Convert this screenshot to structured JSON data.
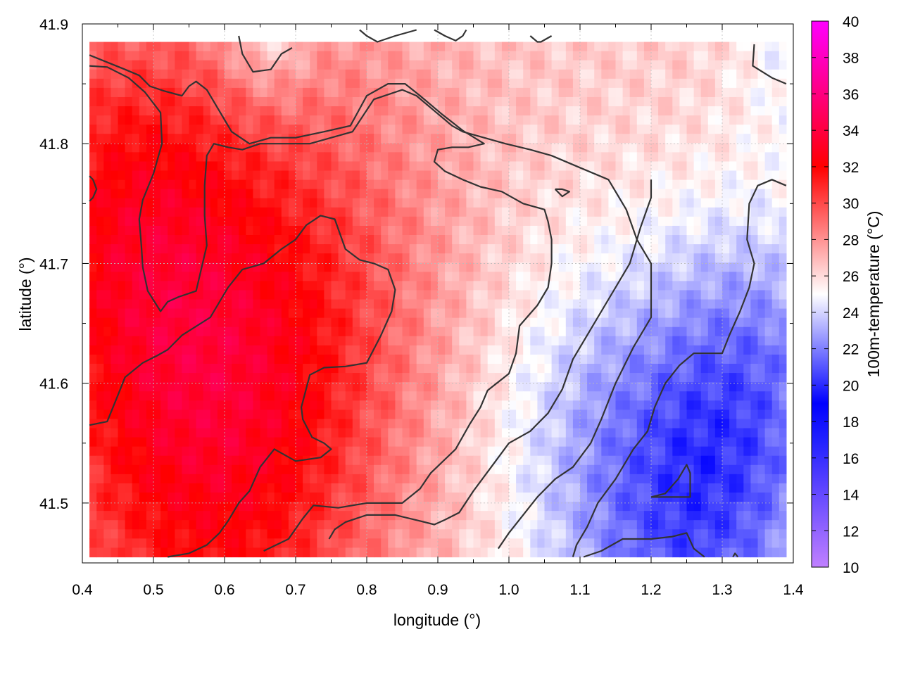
{
  "chart_data": {
    "type": "heatmap",
    "title": "",
    "xlabel": "longitude (°)",
    "ylabel": "latitude (°)",
    "colorbar_label": "100m-temperature (°C)",
    "xlim": [
      0.4,
      1.4
    ],
    "ylim": [
      41.45,
      41.9
    ],
    "x_ticks": [
      0.4,
      0.5,
      0.6,
      0.7,
      0.8,
      0.9,
      1.0,
      1.1,
      1.2,
      1.3,
      1.4
    ],
    "x_tick_labels": [
      "0.4",
      "0.5",
      "0.6",
      "0.7",
      "0.8",
      "0.9",
      "1.0",
      "1.1",
      "1.2",
      "1.3",
      "1.4"
    ],
    "y_ticks": [
      41.5,
      41.6,
      41.7,
      41.8,
      41.9
    ],
    "y_tick_labels": [
      "41.5",
      "41.6",
      "41.7",
      "41.8",
      "41.9"
    ],
    "color_range": [
      10,
      40
    ],
    "colorbar_ticks": [
      10,
      12,
      14,
      16,
      18,
      20,
      22,
      24,
      26,
      28,
      30,
      32,
      34,
      36,
      38,
      40
    ],
    "colorbar_tick_labels": [
      "10",
      "12",
      "14",
      "16",
      "18",
      "20",
      "22",
      "24",
      "26",
      "28",
      "30",
      "32",
      "34",
      "36",
      "38",
      "40"
    ],
    "colormap": [
      {
        "value": 10,
        "color": "#c080ff"
      },
      {
        "value": 17,
        "color": "#2020ff"
      },
      {
        "value": 19,
        "color": "#0000ff"
      },
      {
        "value": 25,
        "color": "#ffffff"
      },
      {
        "value": 32,
        "color": "#ff0000"
      },
      {
        "value": 34,
        "color": "#ff0040"
      },
      {
        "value": 40,
        "color": "#ff00ff"
      }
    ],
    "grid": true,
    "field_model": {
      "base": 26.5,
      "hot_spots": [
        {
          "lon": 0.58,
          "lat": 41.56,
          "amp": 6.0,
          "sigma": 0.17
        },
        {
          "lon": 0.44,
          "lat": 41.76,
          "amp": 3.5,
          "sigma": 0.12
        },
        {
          "lon": 0.73,
          "lat": 41.72,
          "amp": 1.8,
          "sigma": 0.15
        }
      ],
      "cold_spots": [
        {
          "lon": 1.25,
          "lat": 41.5,
          "amp": 5.5,
          "sigma": 0.13
        },
        {
          "lon": 1.37,
          "lat": 41.62,
          "amp": 2.5,
          "sigma": 0.1
        },
        {
          "lon": 0.66,
          "lat": 41.9,
          "amp": 2.5,
          "sigma": 0.045
        },
        {
          "lon": 1.4,
          "lat": 41.88,
          "amp": 1.6,
          "sigma": 0.06
        },
        {
          "lon": 1.06,
          "lat": 41.58,
          "amp": 1.2,
          "sigma": 0.12
        }
      ]
    },
    "contours": [
      {
        "name": "",
        "points": [
          [
            0.41,
            41.874
          ],
          [
            0.46,
            41.862
          ],
          [
            0.48,
            41.857
          ],
          [
            0.495,
            41.848
          ],
          [
            0.515,
            41.844
          ],
          [
            0.54,
            41.84
          ],
          [
            0.55,
            41.848
          ],
          [
            0.56,
            41.852
          ],
          [
            0.575,
            41.845
          ],
          [
            0.6,
            41.82
          ],
          [
            0.61,
            41.81
          ],
          [
            0.635,
            41.8
          ],
          [
            0.665,
            41.805
          ],
          [
            0.7,
            41.805
          ],
          [
            0.74,
            41.81
          ],
          [
            0.777,
            41.815
          ],
          [
            0.8,
            41.84
          ],
          [
            0.83,
            41.85
          ],
          [
            0.854,
            41.85
          ],
          [
            0.875,
            41.84
          ],
          [
            0.905,
            41.825
          ],
          [
            0.935,
            41.811
          ],
          [
            0.965,
            41.8
          ],
          [
            0.943,
            41.797
          ],
          [
            0.92,
            41.797
          ],
          [
            0.9,
            41.795
          ],
          [
            0.895,
            41.785
          ],
          [
            0.91,
            41.777
          ],
          [
            0.935,
            41.77
          ],
          [
            0.96,
            41.764
          ],
          [
            0.99,
            41.76
          ],
          [
            1.02,
            41.75
          ],
          [
            1.05,
            41.745
          ],
          [
            1.055,
            41.735
          ],
          [
            1.06,
            41.72
          ],
          [
            1.06,
            41.7
          ],
          [
            1.055,
            41.68
          ],
          [
            1.04,
            41.665
          ],
          [
            1.015,
            41.648
          ],
          [
            1.01,
            41.625
          ],
          [
            1.0,
            41.608
          ],
          [
            0.97,
            41.594
          ],
          [
            0.96,
            41.58
          ],
          [
            0.945,
            41.566
          ],
          [
            0.925,
            41.545
          ],
          [
            0.89,
            41.525
          ],
          [
            0.875,
            41.512
          ],
          [
            0.85,
            41.5
          ],
          [
            0.8,
            41.5
          ],
          [
            0.76,
            41.496
          ],
          [
            0.725,
            41.498
          ],
          [
            0.71,
            41.487
          ],
          [
            0.69,
            41.47
          ],
          [
            0.655,
            41.46
          ]
        ]
      },
      {
        "name": "",
        "points": [
          [
            0.41,
            41.865
          ],
          [
            0.435,
            41.864
          ],
          [
            0.465,
            41.855
          ],
          [
            0.488,
            41.843
          ],
          [
            0.51,
            41.826
          ],
          [
            0.512,
            41.8
          ],
          [
            0.5,
            41.775
          ],
          [
            0.485,
            41.753
          ],
          [
            0.48,
            41.737
          ],
          [
            0.483,
            41.715
          ],
          [
            0.485,
            41.697
          ],
          [
            0.492,
            41.677
          ],
          [
            0.51,
            41.66
          ],
          [
            0.52,
            41.668
          ],
          [
            0.535,
            41.672
          ],
          [
            0.56,
            41.677
          ],
          [
            0.575,
            41.715
          ],
          [
            0.572,
            41.74
          ],
          [
            0.572,
            41.765
          ],
          [
            0.575,
            41.79
          ],
          [
            0.585,
            41.8
          ],
          [
            0.605,
            41.797
          ],
          [
            0.625,
            41.795
          ],
          [
            0.65,
            41.8
          ],
          [
            0.68,
            41.8
          ],
          [
            0.72,
            41.8
          ],
          [
            0.78,
            41.81
          ],
          [
            0.81,
            41.837
          ],
          [
            0.85,
            41.845
          ],
          [
            0.87,
            41.84
          ],
          [
            0.9,
            41.825
          ],
          [
            0.92,
            41.815
          ],
          [
            0.935,
            41.81
          ],
          [
            0.965,
            41.805
          ],
          [
            0.995,
            41.8
          ],
          [
            1.03,
            41.795
          ],
          [
            1.06,
            41.79
          ],
          [
            1.1,
            41.78
          ],
          [
            1.14,
            41.77
          ],
          [
            1.165,
            41.745
          ],
          [
            1.18,
            41.72
          ],
          [
            1.2,
            41.7
          ],
          [
            1.2,
            41.67
          ],
          [
            1.2,
            41.655
          ],
          [
            1.175,
            41.63
          ],
          [
            1.15,
            41.6
          ],
          [
            1.13,
            41.57
          ],
          [
            1.115,
            41.55
          ],
          [
            1.09,
            41.53
          ],
          [
            1.065,
            41.52
          ],
          [
            1.04,
            41.505
          ],
          [
            1.02,
            41.49
          ],
          [
            1.0,
            41.475
          ],
          [
            0.985,
            41.462
          ]
        ]
      },
      {
        "name": "",
        "points": [
          [
            0.41,
            41.565
          ],
          [
            0.435,
            41.568
          ],
          [
            0.45,
            41.59
          ],
          [
            0.46,
            41.605
          ],
          [
            0.485,
            41.617
          ],
          [
            0.505,
            41.623
          ],
          [
            0.52,
            41.628
          ],
          [
            0.54,
            41.64
          ],
          [
            0.58,
            41.655
          ],
          [
            0.605,
            41.68
          ],
          [
            0.625,
            41.695
          ],
          [
            0.655,
            41.7
          ],
          [
            0.68,
            41.712
          ],
          [
            0.7,
            41.72
          ],
          [
            0.715,
            41.732
          ],
          [
            0.735,
            41.74
          ],
          [
            0.755,
            41.737
          ],
          [
            0.77,
            41.712
          ],
          [
            0.79,
            41.703
          ],
          [
            0.81,
            41.7
          ],
          [
            0.83,
            41.695
          ],
          [
            0.84,
            41.678
          ],
          [
            0.835,
            41.66
          ],
          [
            0.82,
            41.64
          ],
          [
            0.8,
            41.617
          ],
          [
            0.77,
            41.614
          ],
          [
            0.74,
            41.613
          ],
          [
            0.72,
            41.607
          ],
          [
            0.708,
            41.58
          ],
          [
            0.71,
            41.57
          ],
          [
            0.723,
            41.555
          ],
          [
            0.74,
            41.55
          ],
          [
            0.75,
            41.545
          ],
          [
            0.735,
            41.538
          ],
          [
            0.7,
            41.535
          ],
          [
            0.67,
            41.545
          ],
          [
            0.65,
            41.53
          ],
          [
            0.635,
            41.51
          ],
          [
            0.62,
            41.5
          ],
          [
            0.605,
            41.485
          ],
          [
            0.593,
            41.475
          ],
          [
            0.575,
            41.465
          ],
          [
            0.55,
            41.458
          ],
          [
            0.52,
            41.455
          ]
        ]
      },
      {
        "name": "",
        "points": [
          [
            0.747,
            41.47
          ],
          [
            0.755,
            41.478
          ],
          [
            0.77,
            41.484
          ],
          [
            0.8,
            41.49
          ],
          [
            0.84,
            41.49
          ],
          [
            0.875,
            41.485
          ],
          [
            0.895,
            41.482
          ],
          [
            0.91,
            41.486
          ],
          [
            0.93,
            41.492
          ],
          [
            0.95,
            41.51
          ],
          [
            0.975,
            41.53
          ],
          [
            1.0,
            41.55
          ],
          [
            1.03,
            41.56
          ],
          [
            1.055,
            41.575
          ],
          [
            1.075,
            41.595
          ],
          [
            1.09,
            41.62
          ],
          [
            1.11,
            41.64
          ],
          [
            1.13,
            41.66
          ],
          [
            1.15,
            41.68
          ],
          [
            1.17,
            41.7
          ],
          [
            1.185,
            41.73
          ],
          [
            1.2,
            41.755
          ],
          [
            1.2,
            41.77
          ]
        ]
      },
      {
        "name": "",
        "points": [
          [
            1.065,
            41.762
          ],
          [
            1.075,
            41.762
          ],
          [
            1.085,
            41.76
          ],
          [
            1.075,
            41.756
          ],
          [
            1.065,
            41.762
          ]
        ]
      },
      {
        "name": "",
        "points": [
          [
            1.2,
            41.505
          ],
          [
            1.22,
            41.508
          ],
          [
            1.238,
            41.52
          ],
          [
            1.25,
            41.532
          ],
          [
            1.255,
            41.525
          ],
          [
            1.255,
            41.505
          ],
          [
            1.24,
            41.505
          ],
          [
            1.22,
            41.505
          ],
          [
            1.2,
            41.505
          ]
        ]
      },
      {
        "name": "",
        "points": [
          [
            1.105,
            41.455
          ],
          [
            1.13,
            41.46
          ],
          [
            1.16,
            41.47
          ],
          [
            1.2,
            41.47
          ],
          [
            1.23,
            41.472
          ],
          [
            1.25,
            41.475
          ],
          [
            1.26,
            41.462
          ],
          [
            1.275,
            41.455
          ]
        ]
      },
      {
        "name": "",
        "points": [
          [
            1.315,
            41.455
          ],
          [
            1.318,
            41.458
          ],
          [
            1.322,
            41.455
          ]
        ]
      },
      {
        "name": "",
        "points": [
          [
            0.62,
            41.89
          ],
          [
            0.625,
            41.875
          ],
          [
            0.64,
            41.86
          ],
          [
            0.665,
            41.862
          ],
          [
            0.68,
            41.875
          ],
          [
            0.695,
            41.88
          ]
        ]
      },
      {
        "name": "",
        "points": [
          [
            0.79,
            41.895
          ],
          [
            0.8,
            41.89
          ],
          [
            0.815,
            41.885
          ],
          [
            0.84,
            41.89
          ],
          [
            0.87,
            41.895
          ]
        ]
      },
      {
        "name": "",
        "points": [
          [
            0.895,
            41.895
          ],
          [
            0.91,
            41.89
          ],
          [
            0.925,
            41.886
          ],
          [
            0.935,
            41.89
          ],
          [
            0.94,
            41.895
          ]
        ]
      },
      {
        "name": "",
        "points": [
          [
            1.03,
            41.89
          ],
          [
            1.04,
            41.885
          ],
          [
            1.045,
            41.885
          ],
          [
            1.06,
            41.89
          ]
        ]
      },
      {
        "name": "",
        "points": [
          [
            1.345,
            41.883
          ],
          [
            1.343,
            41.865
          ],
          [
            1.37,
            41.855
          ],
          [
            1.39,
            41.85
          ]
        ]
      },
      {
        "name": "",
        "points": [
          [
            1.39,
            41.765
          ],
          [
            1.37,
            41.77
          ],
          [
            1.35,
            41.765
          ],
          [
            1.338,
            41.75
          ],
          [
            1.335,
            41.72
          ],
          [
            1.345,
            41.7
          ],
          [
            1.338,
            41.68
          ],
          [
            1.325,
            41.66
          ],
          [
            1.31,
            41.64
          ],
          [
            1.3,
            41.625
          ],
          [
            1.28,
            41.625
          ],
          [
            1.26,
            41.625
          ],
          [
            1.24,
            41.615
          ],
          [
            1.22,
            41.6
          ],
          [
            1.205,
            41.58
          ],
          [
            1.195,
            41.56
          ],
          [
            1.175,
            41.545
          ],
          [
            1.15,
            41.52
          ],
          [
            1.125,
            41.5
          ],
          [
            1.11,
            41.48
          ],
          [
            1.095,
            41.465
          ],
          [
            1.09,
            41.455
          ]
        ]
      },
      {
        "name": "",
        "points": [
          [
            0.41,
            41.773
          ],
          [
            0.415,
            41.77
          ],
          [
            0.42,
            41.762
          ],
          [
            0.415,
            41.755
          ],
          [
            0.41,
            41.752
          ]
        ]
      }
    ]
  }
}
